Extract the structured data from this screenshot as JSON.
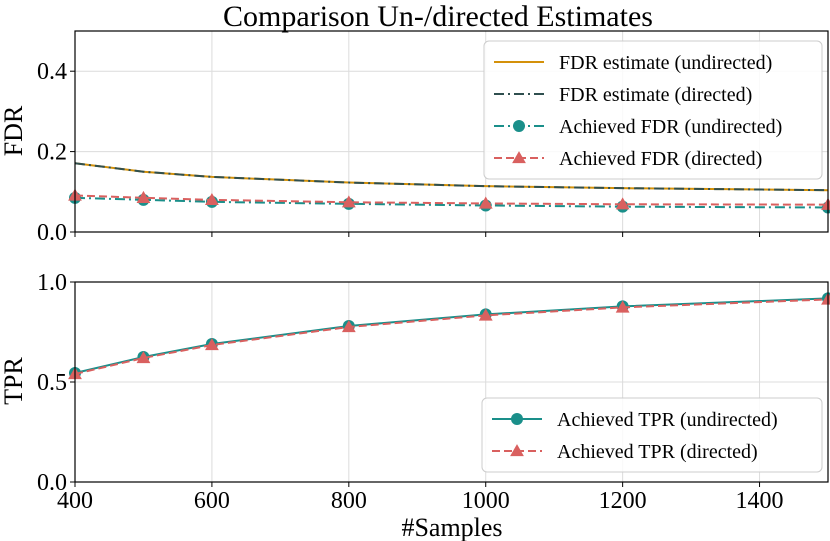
{
  "chart_data": {
    "type": "line",
    "title": "Comparison Un-/directed Estimates",
    "xlabel": "#Samples",
    "x": [
      400,
      500,
      600,
      800,
      1000,
      1200,
      1500
    ],
    "xlim": [
      400,
      1500
    ],
    "xticks": [
      "400",
      "600",
      "800",
      "1000",
      "1200",
      "1400"
    ],
    "grid": true,
    "panels": [
      {
        "ylabel": "FDR",
        "ylim": [
          0.0,
          0.5
        ],
        "yticks": [
          "0.0",
          "0.2",
          "0.4"
        ],
        "legend_position": "upper-right",
        "series": [
          {
            "name": "FDR estimate (undirected)",
            "color": "#d4910a",
            "style": "solid",
            "marker": "none",
            "values": [
              0.171,
              0.15,
              0.137,
              0.123,
              0.114,
              0.109,
              0.104
            ]
          },
          {
            "name": "FDR estimate (directed)",
            "color": "#2f4f4f",
            "style": "dashdot",
            "marker": "none",
            "values": [
              0.171,
              0.15,
              0.137,
              0.123,
              0.114,
              0.109,
              0.104
            ]
          },
          {
            "name": "Achieved FDR (undirected)",
            "color": "#1a8f8a",
            "style": "dashdot",
            "marker": "circle",
            "values": [
              0.085,
              0.08,
              0.075,
              0.07,
              0.066,
              0.063,
              0.061
            ]
          },
          {
            "name": "Achieved FDR (directed)",
            "color": "#d9605f",
            "style": "dashed",
            "marker": "triangle",
            "values": [
              0.091,
              0.085,
              0.08,
              0.074,
              0.071,
              0.069,
              0.068
            ]
          }
        ]
      },
      {
        "ylabel": "TPR",
        "ylim": [
          0.0,
          1.0
        ],
        "yticks": [
          "0.0",
          "0.5",
          "1.0"
        ],
        "legend_position": "lower-right",
        "series": [
          {
            "name": "Achieved TPR (undirected)",
            "color": "#1a8f8a",
            "style": "solid",
            "marker": "circle",
            "values": [
              0.545,
              0.625,
              0.69,
              0.78,
              0.838,
              0.878,
              0.918
            ]
          },
          {
            "name": "Achieved TPR (directed)",
            "color": "#d9605f",
            "style": "dashed",
            "marker": "triangle",
            "values": [
              0.54,
              0.62,
              0.685,
              0.775,
              0.833,
              0.873,
              0.913
            ]
          }
        ]
      }
    ]
  }
}
